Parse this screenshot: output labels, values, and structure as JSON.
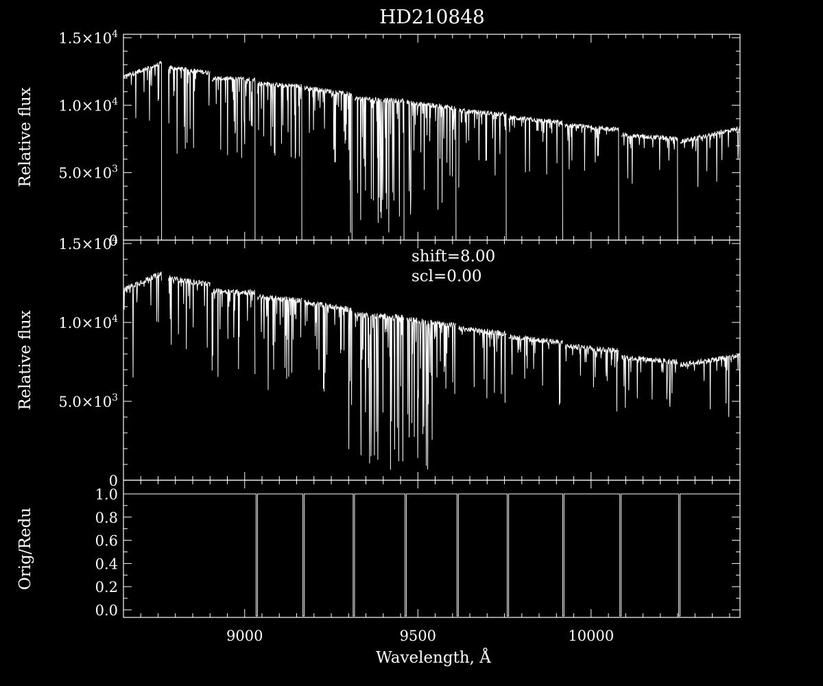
{
  "chart_data": {
    "type": "line",
    "title": "HD210848",
    "xlabel": "Wavelength, Å",
    "xlim": [
      8650,
      10430
    ],
    "x_ticks": [
      9000,
      9500,
      10000
    ],
    "x_tick_labels": [
      "9000",
      "9500",
      "10000"
    ],
    "panels": [
      {
        "id": "original",
        "ylabel": "Relative flux",
        "ylim": [
          0,
          15000
        ],
        "y_tick_labels": [
          {
            "value": 15000,
            "mantissa": "1.5",
            "times": "×",
            "base": "10",
            "exp": "4"
          },
          {
            "value": 10000,
            "mantissa": "1.0",
            "times": "×",
            "base": "10",
            "exp": "4"
          },
          {
            "value": 5000,
            "mantissa": "5.0",
            "times": "×",
            "base": "10",
            "exp": "3"
          },
          {
            "value": 0,
            "mantissa": "0",
            "times": "",
            "base": "",
            "exp": ""
          }
        ],
        "series": [
          {
            "segments": [
              {
                "x0": 8650,
                "x1": 8760,
                "y0": 12100,
                "y1": 13100,
                "gap_right": true
              },
              {
                "x0": 8780,
                "x1": 8900,
                "y0": 12800,
                "y1": 12400,
                "gap_right": false
              },
              {
                "x0": 8905,
                "x1": 9030,
                "y0": 12000,
                "y1": 11900,
                "gap_right": true
              },
              {
                "x0": 9037,
                "x1": 9165,
                "y0": 11600,
                "y1": 11400,
                "gap_right": true
              },
              {
                "x0": 9172,
                "x1": 9310,
                "y0": 11300,
                "y1": 10800,
                "gap_right": true
              },
              {
                "x0": 9318,
                "x1": 9460,
                "y0": 10500,
                "y1": 10300,
                "gap_right": true
              },
              {
                "x0": 9468,
                "x1": 9610,
                "y0": 10200,
                "y1": 9800,
                "gap_right": true
              },
              {
                "x0": 9618,
                "x1": 9755,
                "y0": 9600,
                "y1": 9300,
                "gap_right": true
              },
              {
                "x0": 9762,
                "x1": 9918,
                "y0": 9100,
                "y1": 8700,
                "gap_right": true
              },
              {
                "x0": 9925,
                "x1": 10080,
                "y0": 8500,
                "y1": 8200,
                "gap_right": true
              },
              {
                "x0": 10088,
                "x1": 10250,
                "y0": 7800,
                "y1": 7500,
                "gap_right": true
              },
              {
                "x0": 10258,
                "x1": 10430,
                "y0": 7300,
                "y1": 8300,
                "gap_right": false
              }
            ]
          }
        ]
      },
      {
        "id": "reduced",
        "ylabel": "Relative flux",
        "ylim": [
          0,
          15000
        ],
        "annotations": [
          "shift=8.00",
          "scl=0.00"
        ],
        "y_tick_labels": [
          {
            "value": 15000,
            "mantissa": "1.5",
            "times": "×",
            "base": "10",
            "exp": "4"
          },
          {
            "value": 10000,
            "mantissa": "1.0",
            "times": "×",
            "base": "10",
            "exp": "4"
          },
          {
            "value": 5000,
            "mantissa": "5.0",
            "times": "×",
            "base": "10",
            "exp": "3"
          },
          {
            "value": 0,
            "mantissa": "0",
            "times": "",
            "base": "",
            "exp": ""
          }
        ],
        "series": [
          {
            "segments": [
              {
                "x0": 8650,
                "x1": 8760,
                "y0": 12100,
                "y1": 13100,
                "gap_right": false
              },
              {
                "x0": 8780,
                "x1": 8900,
                "y0": 12800,
                "y1": 12400,
                "gap_right": false
              },
              {
                "x0": 8905,
                "x1": 9030,
                "y0": 12000,
                "y1": 11900,
                "gap_right": false
              },
              {
                "x0": 9037,
                "x1": 9165,
                "y0": 11600,
                "y1": 11400,
                "gap_right": false
              },
              {
                "x0": 9172,
                "x1": 9310,
                "y0": 11300,
                "y1": 10800,
                "gap_right": false
              },
              {
                "x0": 9318,
                "x1": 9460,
                "y0": 10500,
                "y1": 10300,
                "gap_right": false
              },
              {
                "x0": 9468,
                "x1": 9610,
                "y0": 10200,
                "y1": 9800,
                "gap_right": false
              },
              {
                "x0": 9618,
                "x1": 9755,
                "y0": 9600,
                "y1": 9300,
                "gap_right": false
              },
              {
                "x0": 9762,
                "x1": 9918,
                "y0": 9100,
                "y1": 8700,
                "gap_right": false
              },
              {
                "x0": 9925,
                "x1": 10080,
                "y0": 8500,
                "y1": 8200,
                "gap_right": false
              },
              {
                "x0": 10088,
                "x1": 10250,
                "y0": 7800,
                "y1": 7500,
                "gap_right": false
              },
              {
                "x0": 10258,
                "x1": 10430,
                "y0": 7300,
                "y1": 7900,
                "gap_right": false
              }
            ]
          }
        ]
      },
      {
        "id": "ratio",
        "ylabel": "Orig/Redu",
        "ylim": [
          -0.05,
          1.08
        ],
        "y_ticks": [
          0.0,
          0.2,
          0.4,
          0.6,
          0.8,
          1.0
        ],
        "y_tick_labels": [
          "0.0",
          "0.2",
          "0.4",
          "0.6",
          "0.8",
          "1.0"
        ],
        "series": [
          {
            "level": 1.0,
            "floor": -0.05,
            "drops_at": [
              9033,
              9168,
              9313,
              9463,
              9613,
              9758,
              9918,
              10083,
              10253
            ]
          }
        ]
      }
    ]
  }
}
